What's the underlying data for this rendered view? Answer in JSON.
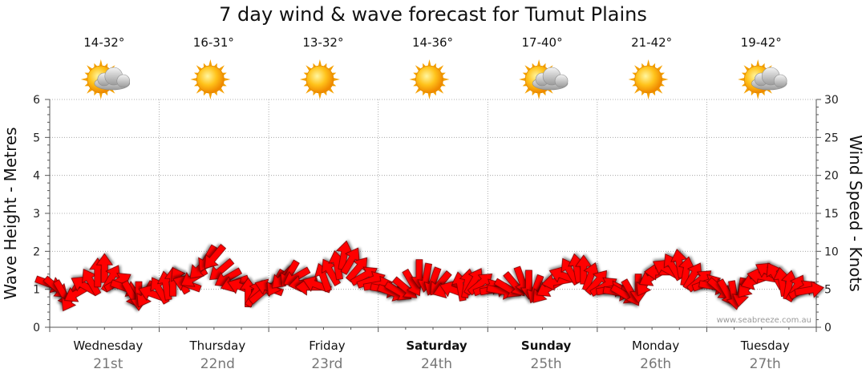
{
  "title": "7 day wind & wave forecast for Tumut Plains",
  "watermark": "www.seabreeze.com.au",
  "days": [
    {
      "name": "Wednesday",
      "date": "21st",
      "temp": "14-32°",
      "icon": "sun-cloud-icon",
      "weekend": false
    },
    {
      "name": "Thursday",
      "date": "22nd",
      "temp": "16-31°",
      "icon": "sun-icon",
      "weekend": false
    },
    {
      "name": "Friday",
      "date": "23rd",
      "temp": "13-32°",
      "icon": "sun-icon",
      "weekend": false
    },
    {
      "name": "Saturday",
      "date": "24th",
      "temp": "14-36°",
      "icon": "sun-icon",
      "weekend": true
    },
    {
      "name": "Sunday",
      "date": "25th",
      "temp": "17-40°",
      "icon": "sun-cloud-icon",
      "weekend": true
    },
    {
      "name": "Monday",
      "date": "26th",
      "temp": "21-42°",
      "icon": "sun-icon",
      "weekend": false
    },
    {
      "name": "Tuesday",
      "date": "27th",
      "temp": "19-42°",
      "icon": "sun-cloud-icon",
      "weekend": false
    }
  ],
  "colors": {
    "arrow": "#ff0000",
    "arrow_stroke": "#7a0000",
    "grid": "#999999",
    "sun": "#ffb300"
  },
  "chart_data": {
    "type": "line",
    "title": "7 day wind & wave forecast for Tumut Plains",
    "ylabel_left": "Wave Height - Metres",
    "ylabel_right": "Wind Speed - Knots",
    "ylim_left": [
      0,
      6
    ],
    "ylim_right": [
      0,
      30
    ],
    "yticks_left": [
      0,
      1,
      2,
      3,
      4,
      5,
      6
    ],
    "yticks_right": [
      0,
      5,
      10,
      15,
      20,
      25,
      30
    ],
    "grid": true,
    "series": [
      {
        "name": "Wind Speed - Knots",
        "axis": "right",
        "marker": "direction-arrow",
        "points": [
          [
            0,
            5.7,
            20
          ],
          [
            0.25,
            5.2,
            40
          ],
          [
            0.5,
            4.4,
            60
          ],
          [
            0.75,
            3.8,
            120
          ],
          [
            1.0,
            4.5,
            150
          ],
          [
            1.25,
            5.5,
            210
          ],
          [
            1.5,
            6.0,
            240
          ],
          [
            1.75,
            7.2,
            270
          ],
          [
            2.0,
            7.8,
            270
          ],
          [
            2.25,
            6.5,
            300
          ],
          [
            2.5,
            6.0,
            330
          ],
          [
            2.75,
            5.2,
            20
          ],
          [
            3.0,
            4.3,
            60
          ],
          [
            3.25,
            4.1,
            90
          ],
          [
            3.5,
            4.3,
            120
          ],
          [
            3.75,
            4.4,
            200
          ],
          [
            4.0,
            4.9,
            240
          ],
          [
            4.25,
            5.5,
            260
          ],
          [
            4.5,
            6.0,
            270
          ],
          [
            4.75,
            6.2,
            240
          ],
          [
            5.0,
            5.7,
            200
          ],
          [
            5.25,
            6.5,
            150
          ],
          [
            5.5,
            7.8,
            135
          ],
          [
            5.75,
            9.0,
            120
          ],
          [
            6.0,
            9.2,
            130
          ],
          [
            6.25,
            7.5,
            140
          ],
          [
            6.5,
            6.5,
            150
          ],
          [
            6.75,
            5.8,
            160
          ],
          [
            7.0,
            5.3,
            200
          ],
          [
            7.25,
            4.6,
            270
          ],
          [
            7.5,
            4.5,
            300
          ],
          [
            7.75,
            4.6,
            320
          ],
          [
            8.0,
            5.2,
            200
          ],
          [
            8.25,
            5.8,
            120
          ],
          [
            8.5,
            6.5,
            135
          ],
          [
            8.75,
            7.0,
            120
          ],
          [
            9.0,
            6.6,
            150
          ],
          [
            9.25,
            5.8,
            170
          ],
          [
            9.5,
            5.3,
            180
          ],
          [
            9.75,
            5.6,
            200
          ],
          [
            10.0,
            6.6,
            250
          ],
          [
            10.25,
            7.3,
            240
          ],
          [
            10.5,
            8.2,
            260
          ],
          [
            10.75,
            9.5,
            280
          ],
          [
            11.0,
            8.8,
            300
          ],
          [
            11.25,
            7.7,
            310
          ],
          [
            11.5,
            6.8,
            330
          ],
          [
            11.75,
            6.2,
            340
          ],
          [
            12.0,
            5.6,
            350
          ],
          [
            12.25,
            5.0,
            10
          ],
          [
            12.5,
            4.6,
            20
          ],
          [
            12.75,
            4.7,
            30
          ],
          [
            13.0,
            5.1,
            40
          ],
          [
            13.25,
            5.8,
            60
          ],
          [
            13.5,
            7.0,
            90
          ],
          [
            13.75,
            6.5,
            100
          ],
          [
            14.0,
            6.0,
            110
          ],
          [
            14.25,
            5.7,
            130
          ],
          [
            14.5,
            5.0,
            160
          ],
          [
            14.75,
            4.9,
            200
          ],
          [
            15.0,
            5.4,
            260
          ],
          [
            15.25,
            5.8,
            280
          ],
          [
            15.5,
            6.1,
            300
          ],
          [
            15.75,
            5.8,
            320
          ],
          [
            16.0,
            5.2,
            340
          ],
          [
            16.25,
            5.0,
            350
          ],
          [
            16.5,
            4.8,
            10
          ],
          [
            16.75,
            5.1,
            30
          ],
          [
            17.0,
            5.6,
            50
          ],
          [
            17.25,
            6.1,
            70
          ],
          [
            17.5,
            5.6,
            90
          ],
          [
            17.75,
            5.0,
            110
          ],
          [
            18.0,
            4.7,
            130
          ],
          [
            18.25,
            5.2,
            150
          ],
          [
            18.5,
            6.0,
            170
          ],
          [
            18.75,
            6.8,
            200
          ],
          [
            19.0,
            7.4,
            240
          ],
          [
            19.25,
            7.8,
            260
          ],
          [
            19.5,
            7.6,
            270
          ],
          [
            19.75,
            6.7,
            290
          ],
          [
            20.0,
            6.0,
            310
          ],
          [
            20.25,
            5.4,
            330
          ],
          [
            20.5,
            5.0,
            350
          ],
          [
            20.75,
            4.6,
            10
          ],
          [
            21.0,
            4.3,
            30
          ],
          [
            21.25,
            4.5,
            60
          ],
          [
            21.5,
            5.1,
            90
          ],
          [
            21.75,
            5.8,
            120
          ],
          [
            22.0,
            6.6,
            150
          ],
          [
            22.25,
            7.3,
            180
          ],
          [
            22.5,
            7.7,
            210
          ],
          [
            22.75,
            8.0,
            240
          ],
          [
            23.0,
            8.4,
            260
          ],
          [
            23.25,
            7.4,
            280
          ],
          [
            23.5,
            6.8,
            300
          ],
          [
            23.75,
            6.2,
            320
          ],
          [
            24.0,
            5.8,
            340
          ],
          [
            24.25,
            5.4,
            10
          ],
          [
            24.5,
            5.0,
            40
          ],
          [
            24.75,
            4.5,
            60
          ],
          [
            25.0,
            4.2,
            80
          ],
          [
            25.25,
            4.6,
            100
          ],
          [
            25.5,
            5.4,
            130
          ],
          [
            25.75,
            6.1,
            160
          ],
          [
            26.0,
            6.7,
            190
          ],
          [
            26.25,
            7.3,
            210
          ],
          [
            26.5,
            6.8,
            240
          ],
          [
            26.75,
            6.0,
            260
          ],
          [
            27.0,
            5.6,
            280
          ],
          [
            27.25,
            5.2,
            300
          ],
          [
            27.5,
            5.0,
            330
          ],
          [
            27.75,
            4.9,
            350
          ]
        ]
      }
    ]
  }
}
